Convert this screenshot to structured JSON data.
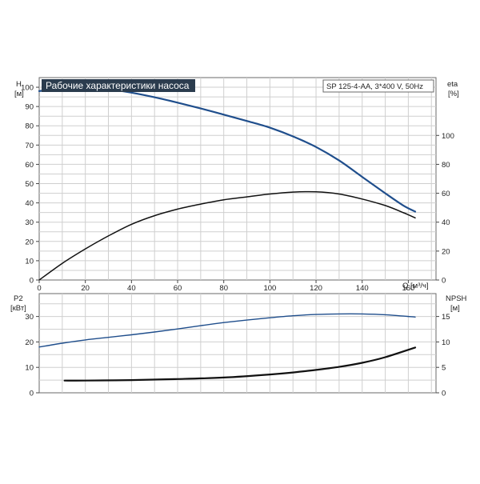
{
  "colors": {
    "head_curve": "#1f4e8c",
    "efficiency_curve": "#111111",
    "p2_curve": "#1f4e8c",
    "npsh_curve": "#111111",
    "title_bg": "#2b3c4e",
    "title_text": "#ffffff"
  },
  "chart_data": [
    {
      "type": "line",
      "title": "Рабочие характеристики насоса",
      "model_label": "SP 125-4-AA, 3*400 V, 50Hz",
      "left_axis": {
        "label": "H",
        "unit": "[м]",
        "ylim": [
          0,
          105
        ],
        "ticks": [
          0,
          10,
          20,
          30,
          40,
          50,
          60,
          70,
          80,
          90,
          100
        ]
      },
      "right_axis": {
        "label": "eta",
        "unit": "[%]",
        "ylim": [
          0,
          140
        ],
        "ticks": [
          0,
          20,
          40,
          60,
          80,
          100
        ]
      },
      "x_axis": {
        "label": "Q [м³/ч]",
        "xlim": [
          0,
          172
        ],
        "ticks": [
          0,
          20,
          40,
          60,
          80,
          100,
          120,
          140,
          160
        ]
      },
      "grid": true,
      "series": [
        {
          "axis": "left",
          "color_key": "head_curve",
          "points": [
            [
              0,
              98
            ],
            [
              10,
              99.5
            ],
            [
              20,
              99.8
            ],
            [
              30,
              99
            ],
            [
              40,
              97.2
            ],
            [
              50,
              94.8
            ],
            [
              60,
              92
            ],
            [
              70,
              89
            ],
            [
              80,
              85.8
            ],
            [
              90,
              82.5
            ],
            [
              100,
              79
            ],
            [
              110,
              74.5
            ],
            [
              120,
              69
            ],
            [
              130,
              62
            ],
            [
              140,
              53.5
            ],
            [
              150,
              45
            ],
            [
              158,
              38.5
            ],
            [
              163,
              35.5
            ]
          ]
        },
        {
          "axis": "right",
          "color_key": "efficiency_curve",
          "points": [
            [
              0,
              0
            ],
            [
              10,
              11.5
            ],
            [
              20,
              21.5
            ],
            [
              30,
              30.5
            ],
            [
              40,
              38.5
            ],
            [
              50,
              44.5
            ],
            [
              60,
              49
            ],
            [
              70,
              52.5
            ],
            [
              80,
              55.5
            ],
            [
              90,
              57.5
            ],
            [
              100,
              59.5
            ],
            [
              110,
              60.8
            ],
            [
              120,
              61
            ],
            [
              130,
              59.5
            ],
            [
              140,
              56
            ],
            [
              150,
              51.5
            ],
            [
              158,
              46.5
            ],
            [
              163,
              43
            ]
          ]
        }
      ]
    },
    {
      "type": "line",
      "left_axis": {
        "label": "P2",
        "unit": "[кВт]",
        "ylim": [
          0,
          39
        ],
        "ticks": [
          0,
          10,
          20,
          30
        ]
      },
      "right_axis": {
        "label": "NPSH",
        "unit": "[м]",
        "ylim": [
          0,
          19.5
        ],
        "ticks": [
          0,
          5,
          10,
          15
        ]
      },
      "x_axis": {
        "xlim": [
          0,
          172
        ]
      },
      "grid": true,
      "series": [
        {
          "axis": "left",
          "color_key": "p2_curve",
          "points": [
            [
              0,
              18
            ],
            [
              10,
              19.5
            ],
            [
              20,
              20.8
            ],
            [
              30,
              21.8
            ],
            [
              40,
              22.8
            ],
            [
              50,
              23.9
            ],
            [
              60,
              25.1
            ],
            [
              70,
              26.4
            ],
            [
              80,
              27.6
            ],
            [
              90,
              28.6
            ],
            [
              100,
              29.5
            ],
            [
              110,
              30.3
            ],
            [
              120,
              30.8
            ],
            [
              130,
              31
            ],
            [
              140,
              31
            ],
            [
              150,
              30.7
            ],
            [
              163,
              29.8
            ]
          ]
        },
        {
          "axis": "right",
          "color_key": "npsh_curve",
          "points": [
            [
              11,
              2.4
            ],
            [
              20,
              2.4
            ],
            [
              40,
              2.5
            ],
            [
              60,
              2.7
            ],
            [
              80,
              3
            ],
            [
              100,
              3.6
            ],
            [
              110,
              4
            ],
            [
              120,
              4.5
            ],
            [
              130,
              5.1
            ],
            [
              140,
              5.9
            ],
            [
              150,
              7
            ],
            [
              163,
              8.9
            ]
          ]
        }
      ]
    }
  ]
}
